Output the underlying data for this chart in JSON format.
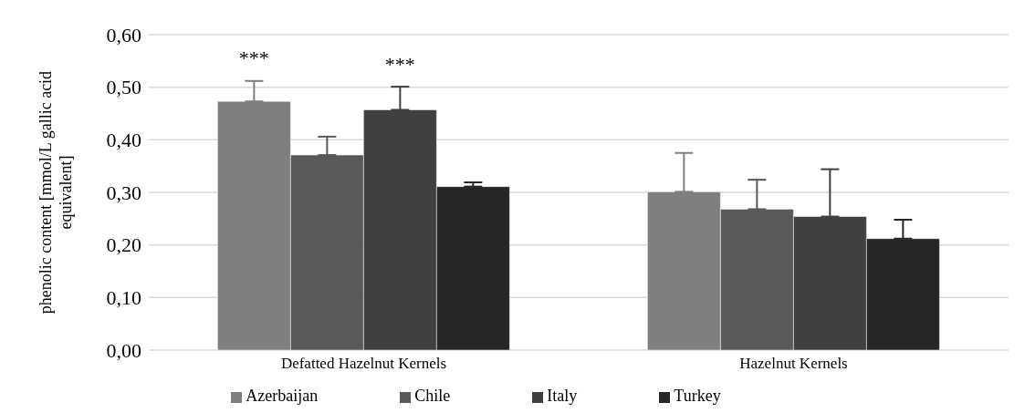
{
  "chart_data": {
    "type": "bar",
    "ylabel": "phenolic content [mmol/L gallic acid equivalent]",
    "categories": [
      "Defatted Hazelnut Kernels",
      "Hazelnut Kernels"
    ],
    "series": [
      {
        "name": "Azerbaijan",
        "color": "#7f7f7f",
        "values": [
          0.473,
          0.301
        ],
        "errors": [
          [
            0.473,
            0.512
          ],
          [
            0.301,
            0.375
          ]
        ]
      },
      {
        "name": "Chile",
        "color": "#595959",
        "values": [
          0.371,
          0.268
        ],
        "errors": [
          [
            0.371,
            0.406
          ],
          [
            0.268,
            0.324
          ]
        ]
      },
      {
        "name": "Italy",
        "color": "#404040",
        "values": [
          0.457,
          0.254
        ],
        "errors": [
          [
            0.457,
            0.501
          ],
          [
            0.254,
            0.344
          ]
        ]
      },
      {
        "name": "Turkey",
        "color": "#262626",
        "values": [
          0.311,
          0.212
        ],
        "errors": [
          [
            0.311,
            0.319
          ],
          [
            0.212,
            0.248
          ]
        ]
      }
    ],
    "ylim": [
      0,
      0.6
    ],
    "yticks": [
      {
        "value": 0,
        "label": "0,00"
      },
      {
        "value": 0.1,
        "label": "0,10"
      },
      {
        "value": 0.2,
        "label": "0,20"
      },
      {
        "value": 0.3,
        "label": "0,30"
      },
      {
        "value": 0.4,
        "label": "0,40"
      },
      {
        "value": 0.5,
        "label": "0,50"
      },
      {
        "value": 0.6,
        "label": "0,60"
      }
    ],
    "grid": "y",
    "legend": "bottom",
    "annotations": [
      "***",
      "***"
    ]
  }
}
